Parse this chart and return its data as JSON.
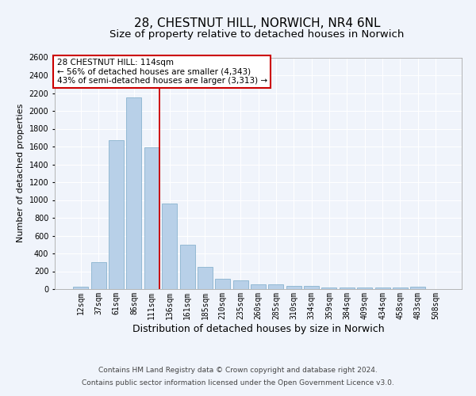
{
  "title": "28, CHESTNUT HILL, NORWICH, NR4 6NL",
  "subtitle": "Size of property relative to detached houses in Norwich",
  "xlabel": "Distribution of detached houses by size in Norwich",
  "ylabel": "Number of detached properties",
  "categories": [
    "12sqm",
    "37sqm",
    "61sqm",
    "86sqm",
    "111sqm",
    "136sqm",
    "161sqm",
    "185sqm",
    "210sqm",
    "235sqm",
    "260sqm",
    "285sqm",
    "310sqm",
    "334sqm",
    "359sqm",
    "384sqm",
    "409sqm",
    "434sqm",
    "458sqm",
    "483sqm",
    "508sqm"
  ],
  "values": [
    25,
    300,
    1670,
    2150,
    1590,
    960,
    500,
    250,
    120,
    100,
    50,
    50,
    35,
    35,
    20,
    20,
    20,
    20,
    15,
    25,
    0
  ],
  "bar_color": "#b8d0e8",
  "bar_edge_color": "#7aaac8",
  "reference_line_color": "#cc0000",
  "annotation_box_text": "28 CHESTNUT HILL: 114sqm\n← 56% of detached houses are smaller (4,343)\n43% of semi-detached houses are larger (3,313) →",
  "annotation_box_color": "#cc0000",
  "annotation_box_bg": "white",
  "ylim": [
    0,
    2600
  ],
  "yticks": [
    0,
    200,
    400,
    600,
    800,
    1000,
    1200,
    1400,
    1600,
    1800,
    2000,
    2200,
    2400,
    2600
  ],
  "footer_line1": "Contains HM Land Registry data © Crown copyright and database right 2024.",
  "footer_line2": "Contains public sector information licensed under the Open Government Licence v3.0.",
  "bg_color": "#f0f4fb",
  "plot_bg_color": "#f0f4fb",
  "title_fontsize": 11,
  "subtitle_fontsize": 9.5,
  "xlabel_fontsize": 9,
  "ylabel_fontsize": 8,
  "tick_fontsize": 7,
  "footer_fontsize": 6.5,
  "ref_line_index": 4.43
}
